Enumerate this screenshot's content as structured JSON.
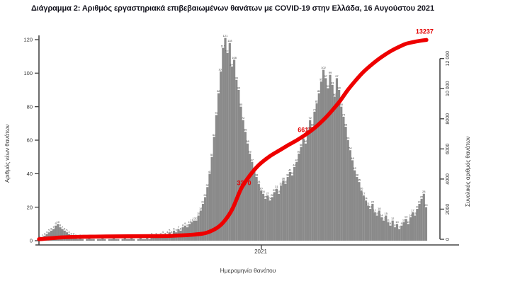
{
  "title": "Διάγραμμα 2: Αριθμός εργαστηριακά επιβεβαιωμένων θανάτων με COVID-19 στην Ελλάδα, 16 Αυγούστου 2021",
  "chart": {
    "left_axis": {
      "label": "Αριθμός νέων θανάτων",
      "ticks": [
        0,
        20,
        40,
        60,
        80,
        100,
        120
      ]
    },
    "right_axis": {
      "label": "Συνολικός αριθμός θανάτων",
      "ticks": [
        0,
        2000,
        4000,
        6000,
        8000,
        10000,
        12000
      ],
      "tick_labels": [
        "0",
        "2000",
        "4000",
        "6000",
        "8000",
        "10 000",
        "12 000"
      ]
    },
    "x_axis": {
      "label": "Ημερομηνία θανάτου",
      "tick_labels": [
        "2021"
      ]
    }
  },
  "colors": {
    "bars": "#8a8a8a",
    "bar_specks": "#3f3f3f",
    "cumulative_line": "#ee0000",
    "annotation": "#e30000",
    "axis": "#474747",
    "title": "#14141e"
  },
  "chart_data": {
    "type": "bar",
    "title": "Διάγραμμα 2: Αριθμός εργαστηριακά επιβεβαιωμένων θανάτων με COVID-19 στην Ελλάδα, 16 Αυγούστου 2021",
    "xlabel": "Ημερομηνία θανάτου",
    "ylabel_left": "Αριθμός νέων θανάτων",
    "ylabel_right": "Συνολικός αριθμός θανάτων",
    "ylim_left": [
      0,
      120
    ],
    "ylim_right": [
      0,
      12000
    ],
    "grid": false,
    "legend": "none",
    "x_axis_tick": {
      "label": "2021",
      "day": 299
    },
    "bars": {
      "description": "daily laboratory-confirmed COVID-19 deaths, 3-day bins, ~Mar 2020 to 16 Aug 2021",
      "bin_days": 3,
      "values": [
        1,
        2,
        3,
        4,
        5,
        6,
        7,
        9,
        10,
        8,
        7,
        6,
        5,
        4,
        3,
        3,
        2,
        1,
        2,
        1,
        0,
        1,
        2,
        1,
        1,
        0,
        1,
        1,
        2,
        1,
        0,
        1,
        1,
        2,
        1,
        1,
        0,
        1,
        2,
        1,
        1,
        2,
        1,
        0,
        1,
        2,
        1,
        1,
        2,
        1,
        3,
        2,
        3,
        2,
        3,
        4,
        3,
        4,
        5,
        4,
        6,
        5,
        7,
        6,
        8,
        9,
        8,
        10,
        11,
        12,
        12,
        15,
        18,
        22,
        26,
        32,
        40,
        50,
        62,
        75,
        88,
        101,
        115,
        121,
        112,
        118,
        104,
        108,
        96,
        90,
        80,
        72,
        65,
        58,
        52,
        47,
        42,
        38,
        34,
        30,
        28,
        25,
        27,
        24,
        26,
        29,
        31,
        28,
        33,
        36,
        34,
        38,
        41,
        39,
        44,
        47,
        52,
        56,
        61,
        58,
        66,
        72,
        68,
        77,
        82,
        88,
        95,
        102,
        97,
        91,
        99,
        93,
        86,
        97,
        90,
        80,
        74,
        68,
        60,
        54,
        48,
        42,
        38,
        35,
        30,
        27,
        24,
        21,
        19,
        22,
        17,
        15,
        18,
        14,
        12,
        15,
        11,
        9,
        12,
        8,
        10,
        7,
        9,
        11,
        13,
        10,
        14,
        17,
        15,
        19,
        22,
        25,
        28,
        20
      ]
    },
    "cumulative_line": {
      "name": "Συνολικός αριθμός θανάτων (σωρευτικά)",
      "points": [
        [
          0,
          5
        ],
        [
          30,
          120
        ],
        [
          60,
          170
        ],
        [
          90,
          190
        ],
        [
          120,
          200
        ],
        [
          150,
          212
        ],
        [
          180,
          235
        ],
        [
          210,
          320
        ],
        [
          225,
          430
        ],
        [
          240,
          780
        ],
        [
          250,
          1250
        ],
        [
          260,
          2000
        ],
        [
          272,
          3370
        ],
        [
          283,
          4200
        ],
        [
          295,
          4900
        ],
        [
          310,
          5500
        ],
        [
          325,
          5950
        ],
        [
          335,
          6250
        ],
        [
          348,
          6613
        ],
        [
          360,
          7000
        ],
        [
          372,
          7450
        ],
        [
          385,
          8050
        ],
        [
          395,
          8600
        ],
        [
          405,
          9200
        ],
        [
          415,
          9900
        ],
        [
          425,
          10500
        ],
        [
          435,
          11050
        ],
        [
          445,
          11500
        ],
        [
          455,
          11900
        ],
        [
          465,
          12250
        ],
        [
          475,
          12550
        ],
        [
          485,
          12800
        ],
        [
          495,
          13000
        ],
        [
          508,
          13140
        ],
        [
          521,
          13237
        ]
      ]
    },
    "annotations": [
      {
        "text": "3370",
        "day": 272,
        "value": 3370
      },
      {
        "text": "6613",
        "day": 348,
        "value": 6613
      },
      {
        "text": "13237",
        "day": 521,
        "value": 13237
      }
    ]
  }
}
